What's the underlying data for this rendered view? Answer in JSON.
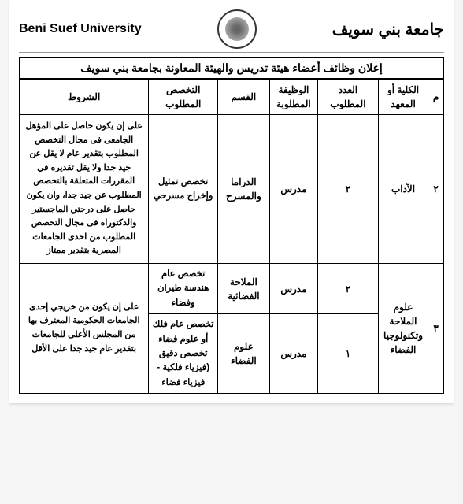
{
  "header": {
    "uni_en": "Beni Suef University",
    "uni_ar": "جامعة بني سويف"
  },
  "announcement": "إعلان وظائف أعضاء هيئة تدريس والهيئة المعاونة بجامعة بني سويف",
  "columns": {
    "num": "م",
    "college": "الكلية أو المعهد",
    "count": "العدد المطلوب",
    "position": "الوظيفة المطلوبة",
    "dept": "القسم",
    "spec": "التخصص المطلوب",
    "cond": "الشروط"
  },
  "rows": {
    "r1": {
      "num": "٢",
      "college": "الآداب",
      "count": "٢",
      "position": "مدرس",
      "dept": "الدراما والمسرح",
      "spec": "تخصص تمثيل وإخراج مسرحي",
      "cond": "على إن يكون حاصل على المؤهل الجامعى فى مجال التخصص المطلوب بتقدير عام لا يقل عن جيد جدا ولا يقل تقديره في المقررات المتعلقة بالتخصص المطلوب عن جيد جدا، وان يكون حاصل على درجتي الماجستير والدكتوراه فى مجال التخصص المطلوب من احدى الجامعات المصرية بتقدير ممتاز"
    },
    "r2": {
      "num": "٣",
      "college": "علوم الملاحة وتكنولوجيا الفضاء",
      "sub1": {
        "count": "٢",
        "position": "مدرس",
        "dept": "الملاحة الفضائية",
        "spec": "تخصص عام هندسة طيران وفضاء"
      },
      "sub2": {
        "count": "١",
        "position": "مدرس",
        "dept": "علوم الفضاء",
        "spec": "تخصص عام فلك أو علوم فضاء تخصص دقيق (فيزياء فلكية - فيزياء فضاء"
      },
      "cond": "على إن يكون من خريجي إحدى الجامعات الحكومية المعترف بها من المجلس الأعلى للجامعات بتقدير عام جيد جدا على الأقل"
    }
  }
}
